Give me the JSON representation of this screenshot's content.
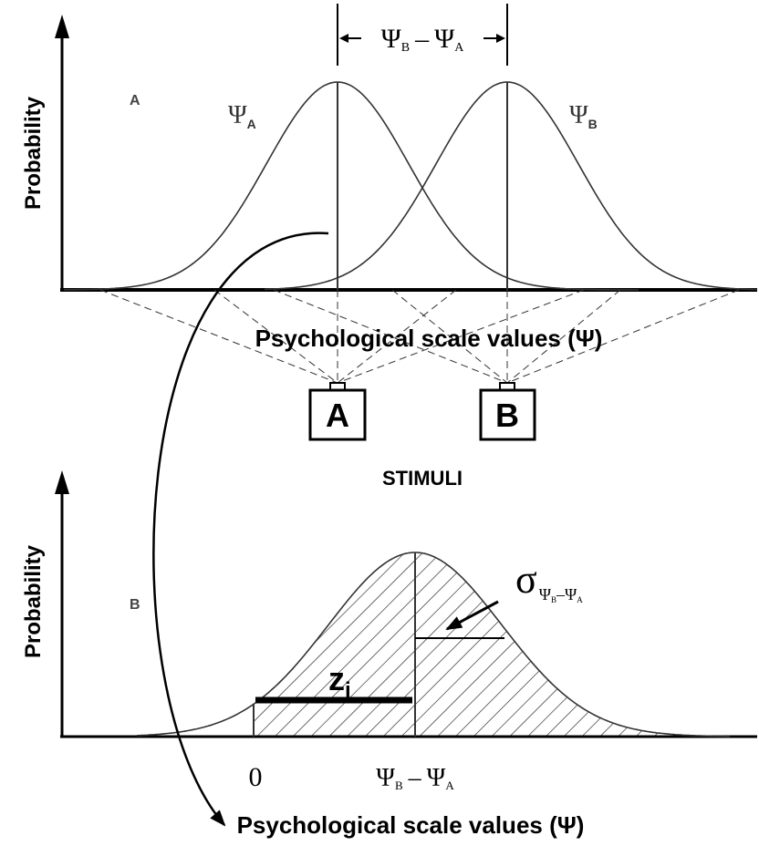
{
  "panel_a": {
    "label": "A",
    "y_label": "Probability",
    "x_label": "Psychological scale values (Ψ)",
    "psi_a": {
      "symbol": "Ψ",
      "sub": "A"
    },
    "psi_b": {
      "symbol": "Ψ",
      "sub": "B"
    },
    "difference": {
      "first": {
        "symbol": "Ψ",
        "sub": "B"
      },
      "operator": "–",
      "second": {
        "symbol": "Ψ",
        "sub": "A"
      }
    }
  },
  "stimuli": {
    "label": "STIMULI",
    "items": [
      "A",
      "B"
    ]
  },
  "panel_b": {
    "label": "B",
    "y_label": "Probability",
    "x_label": "Psychological scale values (Ψ)",
    "sigma": {
      "symbol": "σ",
      "first": {
        "symbol": "Ψ",
        "sub": "B"
      },
      "operator": "–",
      "second": {
        "symbol": "Ψ",
        "sub": "A"
      }
    },
    "z": {
      "symbol": "z",
      "sub": "i"
    },
    "x_ticks": {
      "zero": "0",
      "difference": {
        "first": {
          "symbol": "Ψ",
          "sub": "B"
        },
        "operator": "–",
        "second": {
          "symbol": "Ψ",
          "sub": "A"
        }
      }
    }
  }
}
